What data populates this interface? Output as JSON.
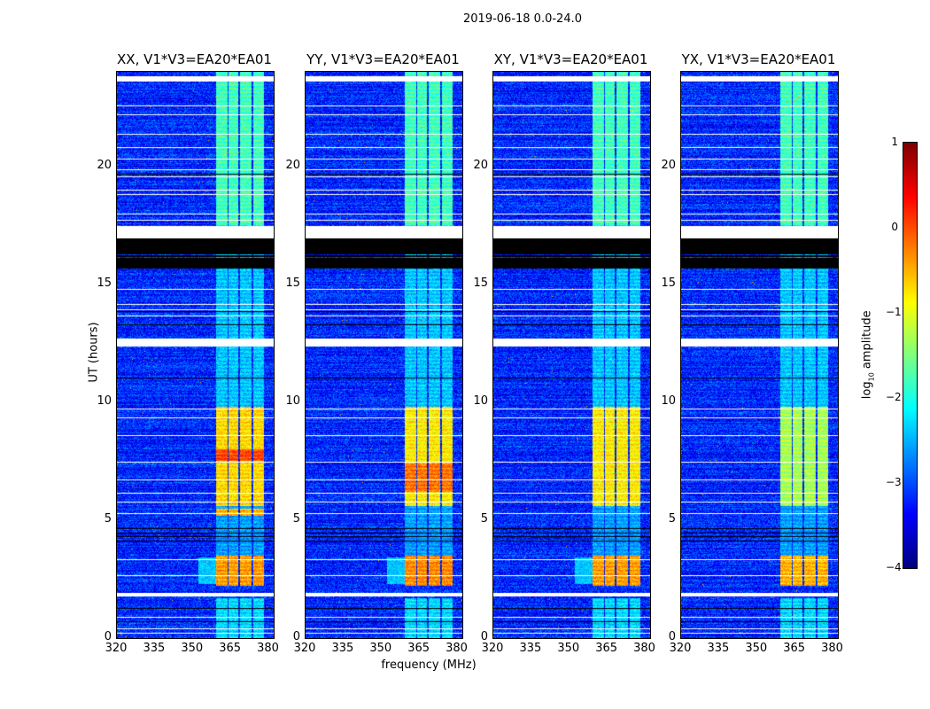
{
  "chart_data": {
    "type": "heatmap",
    "title": "2019-06-18 0.0-24.0",
    "xlabel": "frequency (MHz)",
    "ylabel": "UT (hours)",
    "xlim": [
      320,
      381.9
    ],
    "ylim": [
      0,
      24
    ],
    "xticks": [
      "320",
      "335",
      "350",
      "365",
      "380"
    ],
    "xtick_values": [
      320,
      335,
      350,
      365,
      380
    ],
    "yticks": [
      "0",
      "5",
      "10",
      "15",
      "20"
    ],
    "ytick_values": [
      0,
      5,
      10,
      15,
      20
    ],
    "colorbar": {
      "label_prefix": "log",
      "label_sub": "10",
      "label_suffix": " amplitude",
      "colormap": "jet",
      "range": [
        -4,
        1
      ],
      "ticks": [
        "1",
        "0",
        "−1",
        "−2",
        "−3",
        "−4"
      ],
      "tick_values": [
        1,
        0,
        -1,
        -2,
        -3,
        -4
      ]
    },
    "background_level": -3.2,
    "rfi_subbands_mhz": [
      [
        359.2,
        363.7
      ],
      [
        364.0,
        368.0
      ],
      [
        368.7,
        373.2
      ],
      [
        373.9,
        378.0
      ]
    ],
    "flagged_white_hours": [
      [
        23.6,
        23.8
      ],
      [
        16.95,
        17.45
      ],
      [
        12.35,
        12.7
      ],
      [
        1.75,
        1.9
      ]
    ],
    "flagged_black_hours": [
      [
        15.65,
        16.95
      ]
    ],
    "panels": [
      {
        "title": "XX, V1*V3=EA20*EA01",
        "levels": [
          {
            "t": [
              0,
              1.7
            ],
            "v": -2.3
          },
          {
            "t": [
              2.2,
              3.5
            ],
            "v": -0.4
          },
          {
            "t": [
              3.5,
              5.6
            ],
            "v": -2.6
          },
          {
            "t": [
              5.2,
              5.5
            ],
            "v": -0.5
          },
          {
            "t": [
              5.6,
              9.8
            ],
            "v": -0.7
          },
          {
            "t": [
              7.5,
              8.0
            ],
            "v": 0.0
          },
          {
            "t": [
              9.8,
              17.5
            ],
            "v": -2.4
          },
          {
            "t": [
              17.5,
              24
            ],
            "v": -1.8
          }
        ]
      },
      {
        "title": "YY, V1*V3=EA20*EA01",
        "levels": [
          {
            "t": [
              0,
              1.7
            ],
            "v": -2.3
          },
          {
            "t": [
              2.2,
              3.5
            ],
            "v": -0.3
          },
          {
            "t": [
              3.5,
              5.6
            ],
            "v": -2.6
          },
          {
            "t": [
              5.6,
              9.8
            ],
            "v": -0.8
          },
          {
            "t": [
              6.2,
              7.4
            ],
            "v": -0.2
          },
          {
            "t": [
              9.8,
              17.5
            ],
            "v": -2.4
          },
          {
            "t": [
              17.5,
              24
            ],
            "v": -1.8
          }
        ]
      },
      {
        "title": "XY, V1*V3=EA20*EA01",
        "levels": [
          {
            "t": [
              0,
              1.7
            ],
            "v": -2.3
          },
          {
            "t": [
              2.2,
              3.5
            ],
            "v": -0.4
          },
          {
            "t": [
              3.5,
              5.6
            ],
            "v": -2.6
          },
          {
            "t": [
              5.6,
              9.8
            ],
            "v": -0.8
          },
          {
            "t": [
              9.8,
              17.5
            ],
            "v": -2.4
          },
          {
            "t": [
              17.5,
              24
            ],
            "v": -1.8
          }
        ]
      },
      {
        "title": "YX, V1*V3=EA20*EA01",
        "levels": [
          {
            "t": [
              0,
              1.7
            ],
            "v": -2.3
          },
          {
            "t": [
              2.2,
              3.5
            ],
            "v": -0.5
          },
          {
            "t": [
              3.5,
              5.6
            ],
            "v": -2.6
          },
          {
            "t": [
              5.6,
              9.8
            ],
            "v": -1.3
          },
          {
            "t": [
              9.8,
              17.5
            ],
            "v": -2.4
          },
          {
            "t": [
              17.5,
              24
            ],
            "v": -1.8
          }
        ]
      }
    ]
  }
}
